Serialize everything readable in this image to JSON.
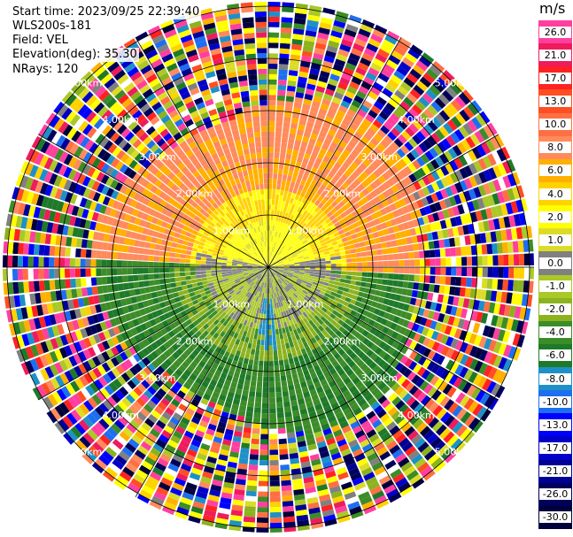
{
  "info": {
    "start_time": "Start time: 2023/09/25 22:39:40",
    "station": "WLS200s-181",
    "field": "Field: VEL",
    "elevation": "Elevation(deg): 35.30",
    "nrays": "NRays: 120"
  },
  "colorbar": {
    "unit": "m/s",
    "levels": [
      {
        "label": "26.0",
        "color": "#ff3fa0"
      },
      {
        "label": "21.0",
        "color": "#ee1c5c"
      },
      {
        "label": "17.0",
        "color": "#ff2222"
      },
      {
        "label": "13.0",
        "color": "#ff4e22"
      },
      {
        "label": "10.0",
        "color": "#ff6f44"
      },
      {
        "label": "8.0",
        "color": "#ff8a5c"
      },
      {
        "label": "6.0",
        "color": "#ffb000"
      },
      {
        "label": "4.0",
        "color": "#ffd200"
      },
      {
        "label": "2.0",
        "color": "#ffff00"
      },
      {
        "label": "1.0",
        "color": "#dcdc28"
      },
      {
        "label": "0.0",
        "color": "#808080"
      },
      {
        "label": "-1.0",
        "color": "#aac828"
      },
      {
        "label": "-2.0",
        "color": "#8cb21e"
      },
      {
        "label": "-4.0",
        "color": "#3c8c28"
      },
      {
        "label": "-6.0",
        "color": "#1e7a28"
      },
      {
        "label": "-8.0",
        "color": "#1e90c8"
      },
      {
        "label": "-10.0",
        "color": "#1e6ef0"
      },
      {
        "label": "-13.0",
        "color": "#0000ff"
      },
      {
        "label": "-17.0",
        "color": "#0000c8"
      },
      {
        "label": "-21.0",
        "color": "#000096"
      },
      {
        "label": "-26.0",
        "color": "#00005a"
      },
      {
        "label": "-30.0",
        "color": "#00003c"
      }
    ]
  },
  "chart_data": {
    "type": "heatmap",
    "projection": "polar PPI",
    "field": "VEL",
    "units": "m/s",
    "n_rays": 120,
    "range_rings_km": [
      1.0,
      2.0,
      3.0,
      4.0,
      5.0
    ],
    "ring_labels": [
      "1.00km",
      "2.00km",
      "3.00km",
      "4.00km",
      "5.00km"
    ],
    "value_range": [
      -30.0,
      26.0
    ],
    "data_regions": [
      {
        "sector": "north",
        "range_km": [
          0,
          1.0
        ],
        "velocity": 2.0
      },
      {
        "sector": "north",
        "range_km": [
          1.0,
          2.0
        ],
        "velocity": 6.0
      },
      {
        "sector": "north",
        "range_km": [
          2.0,
          3.2
        ],
        "velocity": 8.0
      },
      {
        "sector": "east-west axis",
        "range_km": [
          0,
          1.3
        ],
        "velocity": 0.0
      },
      {
        "sector": "south",
        "range_km": [
          0,
          1.5
        ],
        "velocity": -1.0
      },
      {
        "sector": "south",
        "range_km": [
          1.5,
          3.0
        ],
        "velocity": -4.0
      },
      {
        "sector": "south-centre",
        "range_km": [
          0.6,
          1.6
        ],
        "velocity": -8.0
      },
      {
        "sector": "all",
        "range_km": [
          3.2,
          5.5
        ],
        "velocity": "noise"
      }
    ]
  }
}
